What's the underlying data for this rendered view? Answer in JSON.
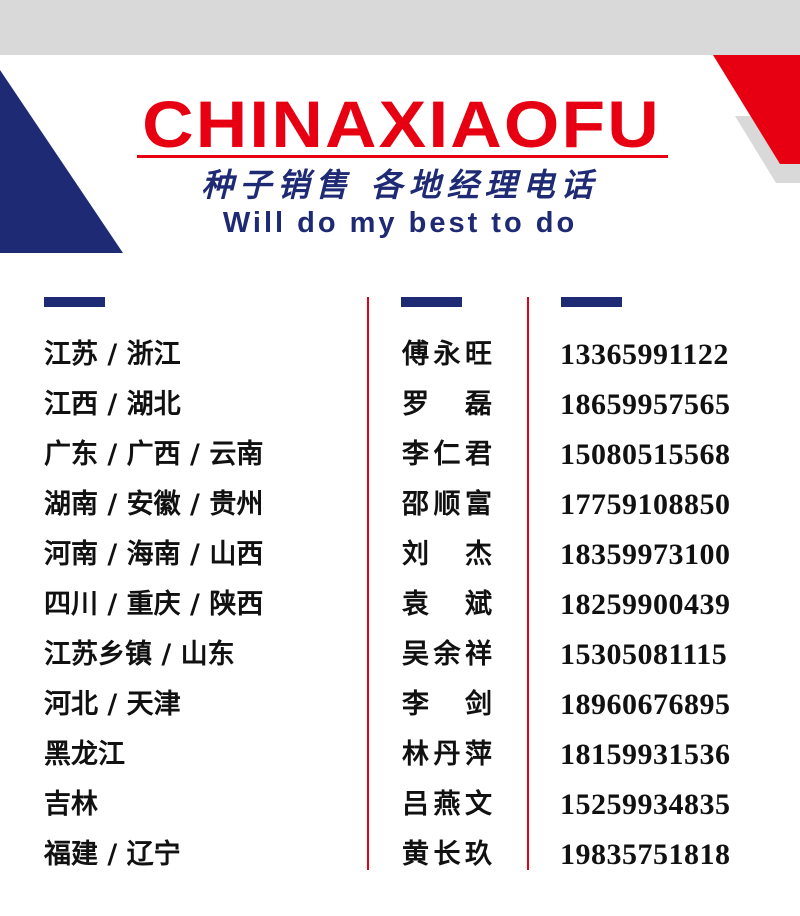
{
  "header": {
    "brand": "CHINAXIAOFU",
    "slogan_cn": "种子销售 各地经理电话",
    "slogan_en": "Will do my best to do"
  },
  "colors": {
    "navy": "#1f2a74",
    "red": "#e60012",
    "gray": "#d9d9d9"
  },
  "contacts": [
    {
      "region": "江苏 / 浙江",
      "name": "傅永旺",
      "phone": "13365991122"
    },
    {
      "region": "江西 / 湖北",
      "name": "罗 磊",
      "phone": "18659957565"
    },
    {
      "region": "广东 / 广西 / 云南",
      "name": "李仁君",
      "phone": "15080515568"
    },
    {
      "region": "湖南 / 安徽 / 贵州",
      "name": "邵顺富",
      "phone": "17759108850"
    },
    {
      "region": "河南 / 海南 / 山西",
      "name": "刘 杰",
      "phone": "18359973100"
    },
    {
      "region": "四川 / 重庆 / 陕西",
      "name": "袁 斌",
      "phone": "18259900439"
    },
    {
      "region": "江苏乡镇 / 山东",
      "name": "吴余祥",
      "phone": "15305081115"
    },
    {
      "region": "河北 / 天津",
      "name": "李 剑",
      "phone": "18960676895"
    },
    {
      "region": "黑龙江",
      "name": "林丹萍",
      "phone": "18159931536"
    },
    {
      "region": "吉林",
      "name": "吕燕文",
      "phone": "15259934835"
    },
    {
      "region": "福建 / 辽宁",
      "name": "黄长玖",
      "phone": "19835751818"
    }
  ]
}
